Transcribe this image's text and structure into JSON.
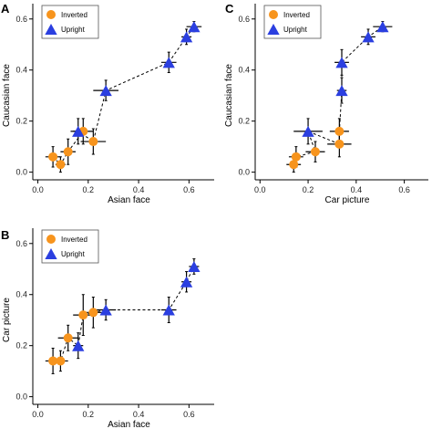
{
  "colors": {
    "inverted": "#F7941D",
    "upright": "#2B3FE0",
    "axis": "#000000",
    "errorbar": "#000000",
    "line": "#000000"
  },
  "chart_data": [
    {
      "panel_letter": "A",
      "type": "scatter",
      "xlabel": "Asian face",
      "ylabel": "Caucasian face",
      "xlim": [
        -0.02,
        0.7
      ],
      "ylim": [
        -0.03,
        0.66
      ],
      "xticks": [
        "0.0",
        "0.2",
        "0.4",
        "0.6"
      ],
      "yticks": [
        "0.0",
        "0.2",
        "0.4",
        "0.6"
      ],
      "grid": false,
      "legend_position": "top-left",
      "connecting_line": "dashed",
      "series": [
        {
          "name": "Inverted",
          "marker": "circle",
          "points": [
            {
              "x": 0.06,
              "y": 0.06,
              "xerr": 0.03,
              "yerr": 0.04
            },
            {
              "x": 0.09,
              "y": 0.03,
              "xerr": 0.02,
              "yerr": 0.03
            },
            {
              "x": 0.12,
              "y": 0.08,
              "xerr": 0.03,
              "yerr": 0.05
            },
            {
              "x": 0.18,
              "y": 0.16,
              "xerr": 0.04,
              "yerr": 0.05
            },
            {
              "x": 0.22,
              "y": 0.12,
              "xerr": 0.05,
              "yerr": 0.05
            }
          ]
        },
        {
          "name": "Upright",
          "marker": "triangle",
          "points": [
            {
              "x": 0.16,
              "y": 0.16,
              "xerr": 0.03,
              "yerr": 0.05
            },
            {
              "x": 0.27,
              "y": 0.32,
              "xerr": 0.05,
              "yerr": 0.04
            },
            {
              "x": 0.52,
              "y": 0.43,
              "xerr": 0.03,
              "yerr": 0.04
            },
            {
              "x": 0.59,
              "y": 0.53,
              "xerr": 0.02,
              "yerr": 0.03
            },
            {
              "x": 0.62,
              "y": 0.57,
              "xerr": 0.03,
              "yerr": 0.02
            }
          ]
        }
      ],
      "line_order": [
        [
          0.06,
          0.06
        ],
        [
          0.09,
          0.03
        ],
        [
          0.12,
          0.08
        ],
        [
          0.18,
          0.16
        ],
        [
          0.16,
          0.16
        ],
        [
          0.22,
          0.12
        ],
        [
          0.27,
          0.32
        ],
        [
          0.52,
          0.43
        ],
        [
          0.59,
          0.53
        ],
        [
          0.62,
          0.57
        ]
      ]
    },
    {
      "panel_letter": "C",
      "type": "scatter",
      "xlabel": "Car picture",
      "ylabel": "Caucasian face",
      "xlim": [
        -0.02,
        0.7
      ],
      "ylim": [
        -0.03,
        0.66
      ],
      "xticks": [
        "0.0",
        "0.2",
        "0.4",
        "0.6"
      ],
      "yticks": [
        "0.0",
        "0.2",
        "0.4",
        "0.6"
      ],
      "grid": false,
      "legend_position": "top-left",
      "connecting_line": "dashed",
      "series": [
        {
          "name": "Inverted",
          "marker": "circle",
          "points": [
            {
              "x": 0.14,
              "y": 0.03,
              "xerr": 0.03,
              "yerr": 0.03
            },
            {
              "x": 0.15,
              "y": 0.06,
              "xerr": 0.03,
              "yerr": 0.04
            },
            {
              "x": 0.23,
              "y": 0.08,
              "xerr": 0.04,
              "yerr": 0.04
            },
            {
              "x": 0.33,
              "y": 0.11,
              "xerr": 0.05,
              "yerr": 0.05
            },
            {
              "x": 0.33,
              "y": 0.16,
              "xerr": 0.04,
              "yerr": 0.05
            }
          ]
        },
        {
          "name": "Upright",
          "marker": "triangle",
          "points": [
            {
              "x": 0.2,
              "y": 0.16,
              "xerr": 0.06,
              "yerr": 0.05
            },
            {
              "x": 0.34,
              "y": 0.32,
              "xerr": 0.02,
              "yerr": 0.05
            },
            {
              "x": 0.34,
              "y": 0.43,
              "xerr": 0.03,
              "yerr": 0.05
            },
            {
              "x": 0.45,
              "y": 0.53,
              "xerr": 0.03,
              "yerr": 0.03
            },
            {
              "x": 0.51,
              "y": 0.57,
              "xerr": 0.04,
              "yerr": 0.02
            }
          ]
        }
      ],
      "line_order": [
        [
          0.14,
          0.03
        ],
        [
          0.15,
          0.06
        ],
        [
          0.23,
          0.08
        ],
        [
          0.2,
          0.16
        ],
        [
          0.33,
          0.11
        ],
        [
          0.33,
          0.16
        ],
        [
          0.34,
          0.32
        ],
        [
          0.34,
          0.43
        ],
        [
          0.45,
          0.53
        ],
        [
          0.51,
          0.57
        ]
      ]
    },
    {
      "panel_letter": "B",
      "type": "scatter",
      "xlabel": "Asian face",
      "ylabel": "Car picture",
      "xlim": [
        -0.02,
        0.7
      ],
      "ylim": [
        -0.03,
        0.66
      ],
      "xticks": [
        "0.0",
        "0.2",
        "0.4",
        "0.6"
      ],
      "yticks": [
        "0.0",
        "0.2",
        "0.4",
        "0.6"
      ],
      "grid": false,
      "legend_position": "top-left",
      "connecting_line": "dashed",
      "series": [
        {
          "name": "Inverted",
          "marker": "circle",
          "points": [
            {
              "x": 0.06,
              "y": 0.14,
              "xerr": 0.03,
              "yerr": 0.05
            },
            {
              "x": 0.09,
              "y": 0.14,
              "xerr": 0.03,
              "yerr": 0.04
            },
            {
              "x": 0.12,
              "y": 0.23,
              "xerr": 0.04,
              "yerr": 0.05
            },
            {
              "x": 0.18,
              "y": 0.32,
              "xerr": 0.04,
              "yerr": 0.08
            },
            {
              "x": 0.22,
              "y": 0.33,
              "xerr": 0.04,
              "yerr": 0.06
            }
          ]
        },
        {
          "name": "Upright",
          "marker": "triangle",
          "points": [
            {
              "x": 0.16,
              "y": 0.2,
              "xerr": 0.02,
              "yerr": 0.05
            },
            {
              "x": 0.27,
              "y": 0.34,
              "xerr": 0.04,
              "yerr": 0.04
            },
            {
              "x": 0.52,
              "y": 0.34,
              "xerr": 0.03,
              "yerr": 0.05
            },
            {
              "x": 0.59,
              "y": 0.45,
              "xerr": 0.02,
              "yerr": 0.04
            },
            {
              "x": 0.62,
              "y": 0.51,
              "xerr": 0.02,
              "yerr": 0.03
            }
          ]
        }
      ],
      "line_order": [
        [
          0.06,
          0.14
        ],
        [
          0.09,
          0.14
        ],
        [
          0.12,
          0.23
        ],
        [
          0.16,
          0.2
        ],
        [
          0.18,
          0.32
        ],
        [
          0.22,
          0.33
        ],
        [
          0.27,
          0.34
        ],
        [
          0.52,
          0.34
        ],
        [
          0.59,
          0.45
        ],
        [
          0.62,
          0.51
        ]
      ]
    }
  ]
}
